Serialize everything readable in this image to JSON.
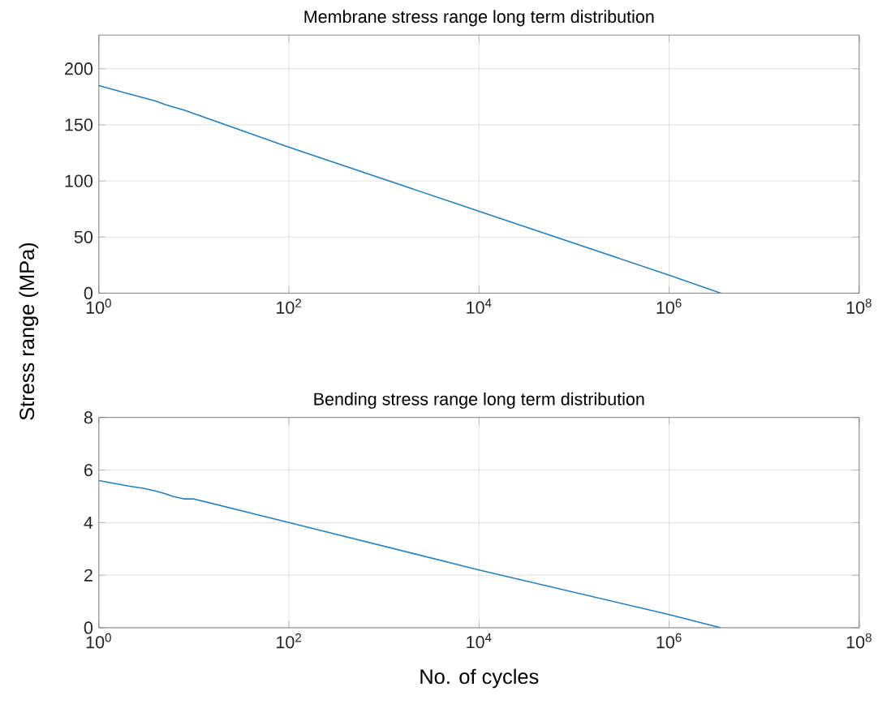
{
  "chart_data": [
    {
      "type": "line",
      "title": "Membrane stress range long term distribution",
      "ylabel": "Stress range (MPa)",
      "log": "x",
      "grid": true,
      "series": [
        {
          "color": "#1f80c8",
          "x": [
            1,
            2,
            3,
            4,
            5,
            6,
            8,
            10,
            100,
            10000,
            1000000,
            3500000
          ],
          "values": [
            185,
            178,
            174,
            171,
            168,
            166,
            163,
            160,
            130,
            73,
            16,
            0
          ]
        }
      ],
      "xlim": [
        1,
        100000000
      ],
      "xticks": [
        {
          "value": 1,
          "label": "10$^{0}$"
        },
        {
          "value": 100,
          "label": "10$^{2}$"
        },
        {
          "value": 10000,
          "label": "10$^{4}$"
        },
        {
          "value": 1000000,
          "label": "10$^{6}$"
        },
        {
          "value": 100000000,
          "label": "10$^{8}$"
        }
      ],
      "ylim": [
        0,
        230
      ],
      "yticks": [
        0,
        50,
        100,
        150,
        200
      ]
    },
    {
      "type": "line",
      "title": "Bending stress range long term distribution",
      "xlabel": "No. of cycles",
      "log": "x",
      "grid": true,
      "series": [
        {
          "color": "#1f80c8",
          "x": [
            1,
            2,
            3,
            4,
            5,
            6,
            8,
            10,
            100,
            10000,
            1000000,
            3500000
          ],
          "values": [
            5.6,
            5.4,
            5.3,
            5.2,
            5.1,
            5.0,
            4.9,
            4.9,
            4.0,
            2.2,
            0.5,
            0
          ]
        }
      ],
      "xlim": [
        1,
        100000000
      ],
      "xticks": [
        {
          "value": 1,
          "label": "10$^{0}$"
        },
        {
          "value": 100,
          "label": "10$^{2}$"
        },
        {
          "value": 10000,
          "label": "10$^{4}$"
        },
        {
          "value": 1000000,
          "label": "10$^{6}$"
        },
        {
          "value": 100000000,
          "label": "10$^{8}$"
        }
      ],
      "ylim": [
        0,
        8
      ],
      "yticks": [
        0,
        2,
        4,
        6,
        8
      ]
    }
  ]
}
